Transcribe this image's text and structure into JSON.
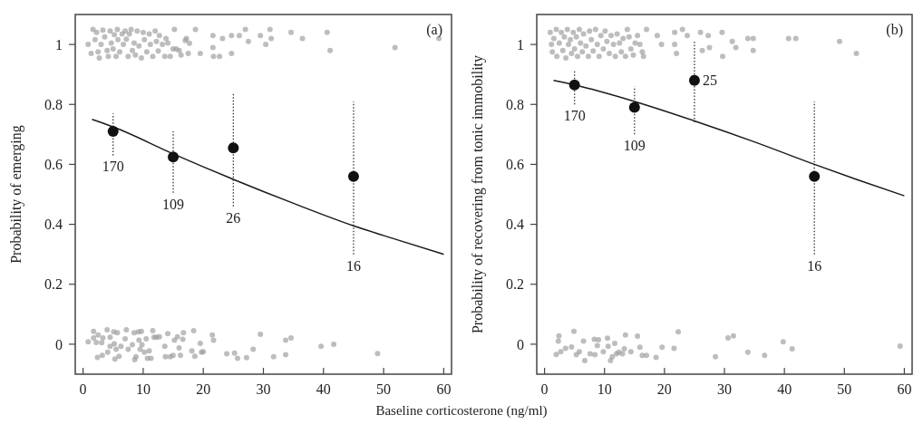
{
  "chart_data": [
    {
      "type": "scatter",
      "xlabel": "Baseline corticosterone (ng/ml)",
      "ylabel": "Probability of emerging",
      "xlim": [
        -1.3,
        61.3
      ],
      "ylim": [
        -0.1,
        1.1
      ],
      "xticks": [
        0,
        10,
        20,
        30,
        40,
        50,
        60
      ],
      "yticks": [
        0,
        0.2,
        0.4,
        0.6,
        0.8,
        1
      ],
      "grid": false,
      "annotations": [
        "(a)",
        {
          "text": "170",
          "x": 5,
          "y": 0.63
        },
        {
          "text": "109",
          "x": 15,
          "y": 0.505
        },
        {
          "text": "26",
          "x": 25,
          "y": 0.46
        },
        {
          "text": "16",
          "x": 45,
          "y": 0.3
        }
      ],
      "series": [
        {
          "color": "#9a9a9a",
          "x": [
            0.85,
            1.35,
            1.65,
            2.0,
            2.25,
            2.5,
            2.7,
            3.0,
            3.3,
            3.6,
            4.0,
            4.2,
            4.5,
            4.7,
            5.0,
            5.2,
            5.5,
            5.7,
            5.8,
            6.1,
            6.5,
            6.7,
            7.0,
            7.2,
            7.5,
            7.7,
            8.0,
            8.2,
            8.5,
            8.7,
            9.0,
            9.3,
            9.7,
            10.0,
            10.2,
            10.6,
            11.0,
            11.2,
            11.6,
            12.0,
            12.2,
            12.5,
            12.7,
            13.2,
            13.6,
            13.8,
            14.1,
            14.5,
            14.97,
            15.5,
            16.0,
            16.3,
            17.0,
            17.2,
            17.5,
            17.7,
            15.2,
            18.7,
            19.5,
            21.6,
            21.6,
            21.7,
            22.7,
            23.2,
            24.7,
            24.7,
            26.0,
            27.0,
            27.5,
            29.5,
            30.4,
            31.1,
            31.3,
            34.6,
            36.5,
            40.6,
            41.1,
            51.9,
            59.2
          ],
          "values": [
            1.0,
            0.97,
            1.05,
            1.016,
            1.04,
            0.975,
            0.955,
            1.0,
            1.048,
            1.025,
            0.98,
            0.96,
            1.045,
            1.005,
            0.985,
            1.033,
            0.96,
            1.05,
            1.016,
            0.975,
            1.035,
            1.0,
            1.045,
            1.018,
            0.96,
            1.035,
            1.05,
            0.98,
            1.005,
            0.965,
            1.045,
            0.995,
            0.955,
            1.04,
            1.016,
            0.975,
            1.035,
            1.0,
            0.96,
            1.045,
            1.01,
            0.978,
            1.03,
            1.0,
            0.96,
            1.02,
            1.005,
            0.96,
            0.985,
            0.985,
            0.98,
            0.965,
            1.013,
            1.02,
            0.97,
            1.004,
            1.05,
            1.05,
            0.97,
            1.03,
            0.99,
            0.96,
            0.96,
            1.02,
            1.03,
            0.97,
            1.03,
            1.05,
            1.01,
            1.03,
            1.0,
            1.05,
            1.02,
            1.04,
            1.02,
            1.04,
            0.98,
            0.99,
            1.02
          ]
        },
        {
          "color": "#9a9a9a",
          "x": [
            0.85,
            1.75,
            1.75,
            2.2,
            2.4,
            2.5,
            3.1,
            3.2,
            3.3,
            4.0,
            4.1,
            4.5,
            4.5,
            5.1,
            5.2,
            5.3,
            5.5,
            5.7,
            5.99,
            6.3,
            7.0,
            7.2,
            7.5,
            8.2,
            8.5,
            8.6,
            8.8,
            9.2,
            9.3,
            9.5,
            9.7,
            9.8,
            10.2,
            10.5,
            10.7,
            11.0,
            11.3,
            11.6,
            11.8,
            12.2,
            12.7,
            13.6,
            13.7,
            14.1,
            14.5,
            14.97,
            15.2,
            15.7,
            15.97,
            16.2,
            16.6,
            16.7,
            18.1,
            18.4,
            18.6,
            19.5,
            19.7,
            20.0,
            21.5,
            21.7,
            23.9,
            25.2,
            25.7,
            27.2,
            28.3,
            29.5,
            31.7,
            33.7,
            33.7,
            34.6,
            39.6,
            41.7,
            49.0
          ],
          "values": [
            0.008,
            0.043,
            0.021,
            0.006,
            -0.044,
            0.031,
            0.005,
            -0.037,
            0.021,
            0.048,
            -0.027,
            0.023,
            -0.007,
            0.041,
            0.001,
            -0.049,
            -0.017,
            0.038,
            -0.04,
            -0.007,
            0.018,
            0.048,
            -0.017,
            -0.002,
            0.038,
            -0.052,
            -0.042,
            0.041,
            0.013,
            -0.017,
            0.043,
            -0.002,
            -0.027,
            0.018,
            -0.047,
            -0.022,
            -0.047,
            0.045,
            0.023,
            0.023,
            0.025,
            -0.007,
            -0.042,
            0.035,
            -0.042,
            -0.037,
            0.013,
            0.025,
            -0.012,
            -0.037,
            0.016,
            0.038,
            -0.022,
            0.045,
            -0.04,
            0.003,
            -0.027,
            -0.025,
            0.031,
            0.013,
            -0.032,
            -0.03,
            -0.047,
            -0.045,
            -0.017,
            0.033,
            -0.042,
            0.013,
            -0.035,
            0.021,
            -0.007,
            0.0,
            -0.031
          ]
        },
        {
          "type": "line",
          "color": "#1a1a1a",
          "x": [
            1.5,
            5,
            15,
            25,
            35,
            45,
            52,
            60
          ],
          "values": [
            0.75,
            0.725,
            0.635,
            0.55,
            0.47,
            0.395,
            0.35,
            0.3
          ]
        },
        {
          "color": "#111111",
          "x": [
            5,
            15,
            25,
            45
          ],
          "values": [
            0.71,
            0.625,
            0.655,
            0.56
          ],
          "errors": [
            [
              0.63,
              0.77
            ],
            [
              0.505,
              0.71
            ],
            [
              0.46,
              0.84
            ],
            [
              0.3,
              0.81
            ]
          ]
        }
      ]
    },
    {
      "type": "scatter",
      "ylabel": "Probability of recovering from tonic immobility",
      "xlim": [
        -1.3,
        61.3
      ],
      "ylim": [
        -0.1,
        1.1
      ],
      "xticks": [
        0,
        10,
        20,
        30,
        40,
        50,
        60
      ],
      "yticks": [
        0,
        0.2,
        0.4,
        0.6,
        0.8,
        1
      ],
      "grid": false,
      "annotations": [
        "(b)",
        {
          "text": "170",
          "x": 5,
          "y": 0.8
        },
        {
          "text": "109",
          "x": 15,
          "y": 0.7
        },
        {
          "text": "25",
          "x": 25,
          "y": 0.88
        },
        {
          "text": "16",
          "x": 45,
          "y": 0.3
        }
      ],
      "series": [
        {
          "color": "#9a9a9a",
          "x": [
            0.95,
            1.15,
            1.3,
            1.55,
            1.95,
            2.05,
            2.45,
            2.8,
            3.05,
            3.3,
            3.55,
            3.8,
            4.0,
            4.3,
            4.5,
            4.8,
            5.0,
            5.3,
            5.5,
            5.8,
            6.0,
            6.3,
            6.5,
            6.9,
            7.3,
            7.5,
            7.8,
            8.1,
            8.5,
            8.8,
            9.1,
            9.4,
            9.8,
            10.1,
            10.4,
            10.8,
            11.1,
            11.5,
            11.8,
            12.1,
            12.5,
            12.8,
            13.1,
            13.5,
            13.8,
            14.1,
            14.4,
            14.8,
            15.1,
            15.5,
            15.9,
            16.3,
            16.5,
            17.0,
            18.8,
            19.5,
            21.7,
            21.7,
            22.0,
            23.0,
            23.8,
            26.0,
            26.3,
            27.3,
            27.5,
            29.6,
            29.7,
            31.3,
            31.9,
            33.9,
            34.8,
            34.8,
            40.7,
            41.9,
            49.2,
            52.0
          ],
          "values": [
            1.04,
            1.0,
            0.975,
            1.02,
            1.05,
            0.96,
            1.005,
            1.04,
            0.98,
            1.025,
            0.955,
            1.05,
            1.0,
            1.016,
            0.97,
            1.04,
            0.985,
            1.025,
            0.96,
            1.05,
            1.005,
            0.975,
            1.035,
            0.995,
            0.96,
            1.045,
            1.016,
            0.978,
            1.05,
            1.0,
            0.96,
            1.03,
            0.985,
            1.045,
            1.01,
            0.97,
            1.03,
            1.0,
            0.96,
            1.035,
            1.005,
            0.975,
            1.02,
            0.96,
            1.05,
            1.025,
            0.985,
            0.965,
            1.005,
            1.03,
            1.0,
            0.975,
            0.96,
            1.05,
            1.03,
            1.0,
            1.04,
            1.0,
            0.97,
            1.05,
            1.03,
            1.04,
            0.98,
            1.03,
            0.99,
            1.04,
            0.96,
            1.01,
            0.99,
            1.02,
            1.02,
            0.98,
            1.02,
            1.02,
            1.01,
            0.97
          ]
        },
        {
          "color": "#9a9a9a",
          "x": [
            1.95,
            2.3,
            2.4,
            2.7,
            3.5,
            4.5,
            4.9,
            5.3,
            5.8,
            6.5,
            6.7,
            7.6,
            8.3,
            8.4,
            8.8,
            9.0,
            9.8,
            10.5,
            10.6,
            11.0,
            11.3,
            11.7,
            12.0,
            12.4,
            13.0,
            13.3,
            13.5,
            14.4,
            15.5,
            15.9,
            16.3,
            17.0,
            18.6,
            19.6,
            21.6,
            22.3,
            28.5,
            30.6,
            31.5,
            33.9,
            36.7,
            39.8,
            41.3,
            59.3
          ],
          "values": [
            -0.034,
            0.01,
            0.028,
            -0.025,
            -0.014,
            -0.009,
            0.043,
            -0.035,
            -0.025,
            0.01,
            -0.055,
            -0.032,
            0.016,
            -0.035,
            -0.005,
            0.015,
            -0.025,
            0.02,
            -0.007,
            -0.055,
            -0.042,
            0.003,
            -0.032,
            -0.027,
            -0.032,
            -0.015,
            0.031,
            -0.025,
            0.027,
            -0.01,
            -0.037,
            -0.037,
            -0.044,
            -0.01,
            -0.014,
            0.041,
            -0.042,
            0.021,
            0.028,
            -0.027,
            -0.037,
            0.008,
            -0.015,
            -0.006
          ]
        },
        {
          "type": "line",
          "color": "#1a1a1a",
          "x": [
            1.5,
            5,
            15,
            25,
            35,
            45,
            52,
            60
          ],
          "values": [
            0.88,
            0.865,
            0.81,
            0.745,
            0.675,
            0.6,
            0.55,
            0.495
          ]
        },
        {
          "color": "#111111",
          "x": [
            5,
            15,
            25,
            45
          ],
          "values": [
            0.865,
            0.79,
            0.88,
            0.56
          ],
          "errors": [
            [
              0.8,
              0.91
            ],
            [
              0.7,
              0.86
            ],
            [
              0.74,
              1.01
            ],
            [
              0.3,
              0.81
            ]
          ]
        }
      ]
    }
  ]
}
